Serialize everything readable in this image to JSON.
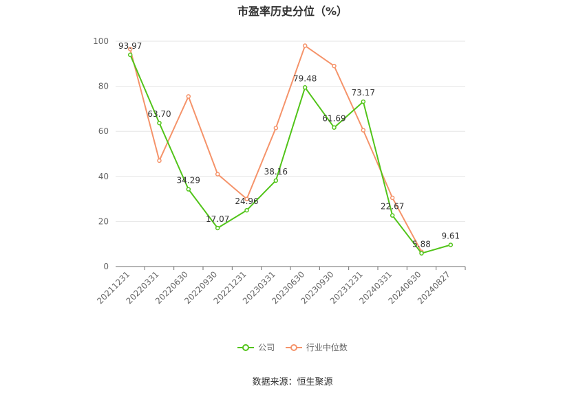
{
  "chart_data": {
    "type": "line",
    "title": "市盈率历史分位（%）",
    "categories": [
      "20211231",
      "20220331",
      "20220630",
      "20220930",
      "20221231",
      "20230331",
      "20230630",
      "20230930",
      "20231231",
      "20240331",
      "20240630",
      "20240827"
    ],
    "ylim": [
      0,
      100
    ],
    "yticks": [
      0,
      20,
      40,
      60,
      80,
      100
    ],
    "grid": true,
    "legend_position": "bottom",
    "series": [
      {
        "name": "公司",
        "color": "#52c41a",
        "values": [
          93.97,
          63.7,
          34.29,
          17.07,
          24.96,
          38.16,
          79.48,
          61.69,
          73.17,
          22.67,
          5.88,
          9.61
        ],
        "labels": [
          "93.97",
          "63.70",
          "34.29",
          "17.07",
          "24.96",
          "38.16",
          "79.48",
          "61.69",
          "73.17",
          "22.67",
          "5.88",
          "9.61"
        ]
      },
      {
        "name": "行业中位数",
        "color": "#f5936a",
        "values": [
          96.5,
          47.0,
          75.5,
          41.0,
          30.0,
          61.5,
          98.0,
          89.0,
          60.5,
          30.5,
          6.5,
          null
        ]
      }
    ]
  },
  "source": "数据来源：恒生聚源"
}
